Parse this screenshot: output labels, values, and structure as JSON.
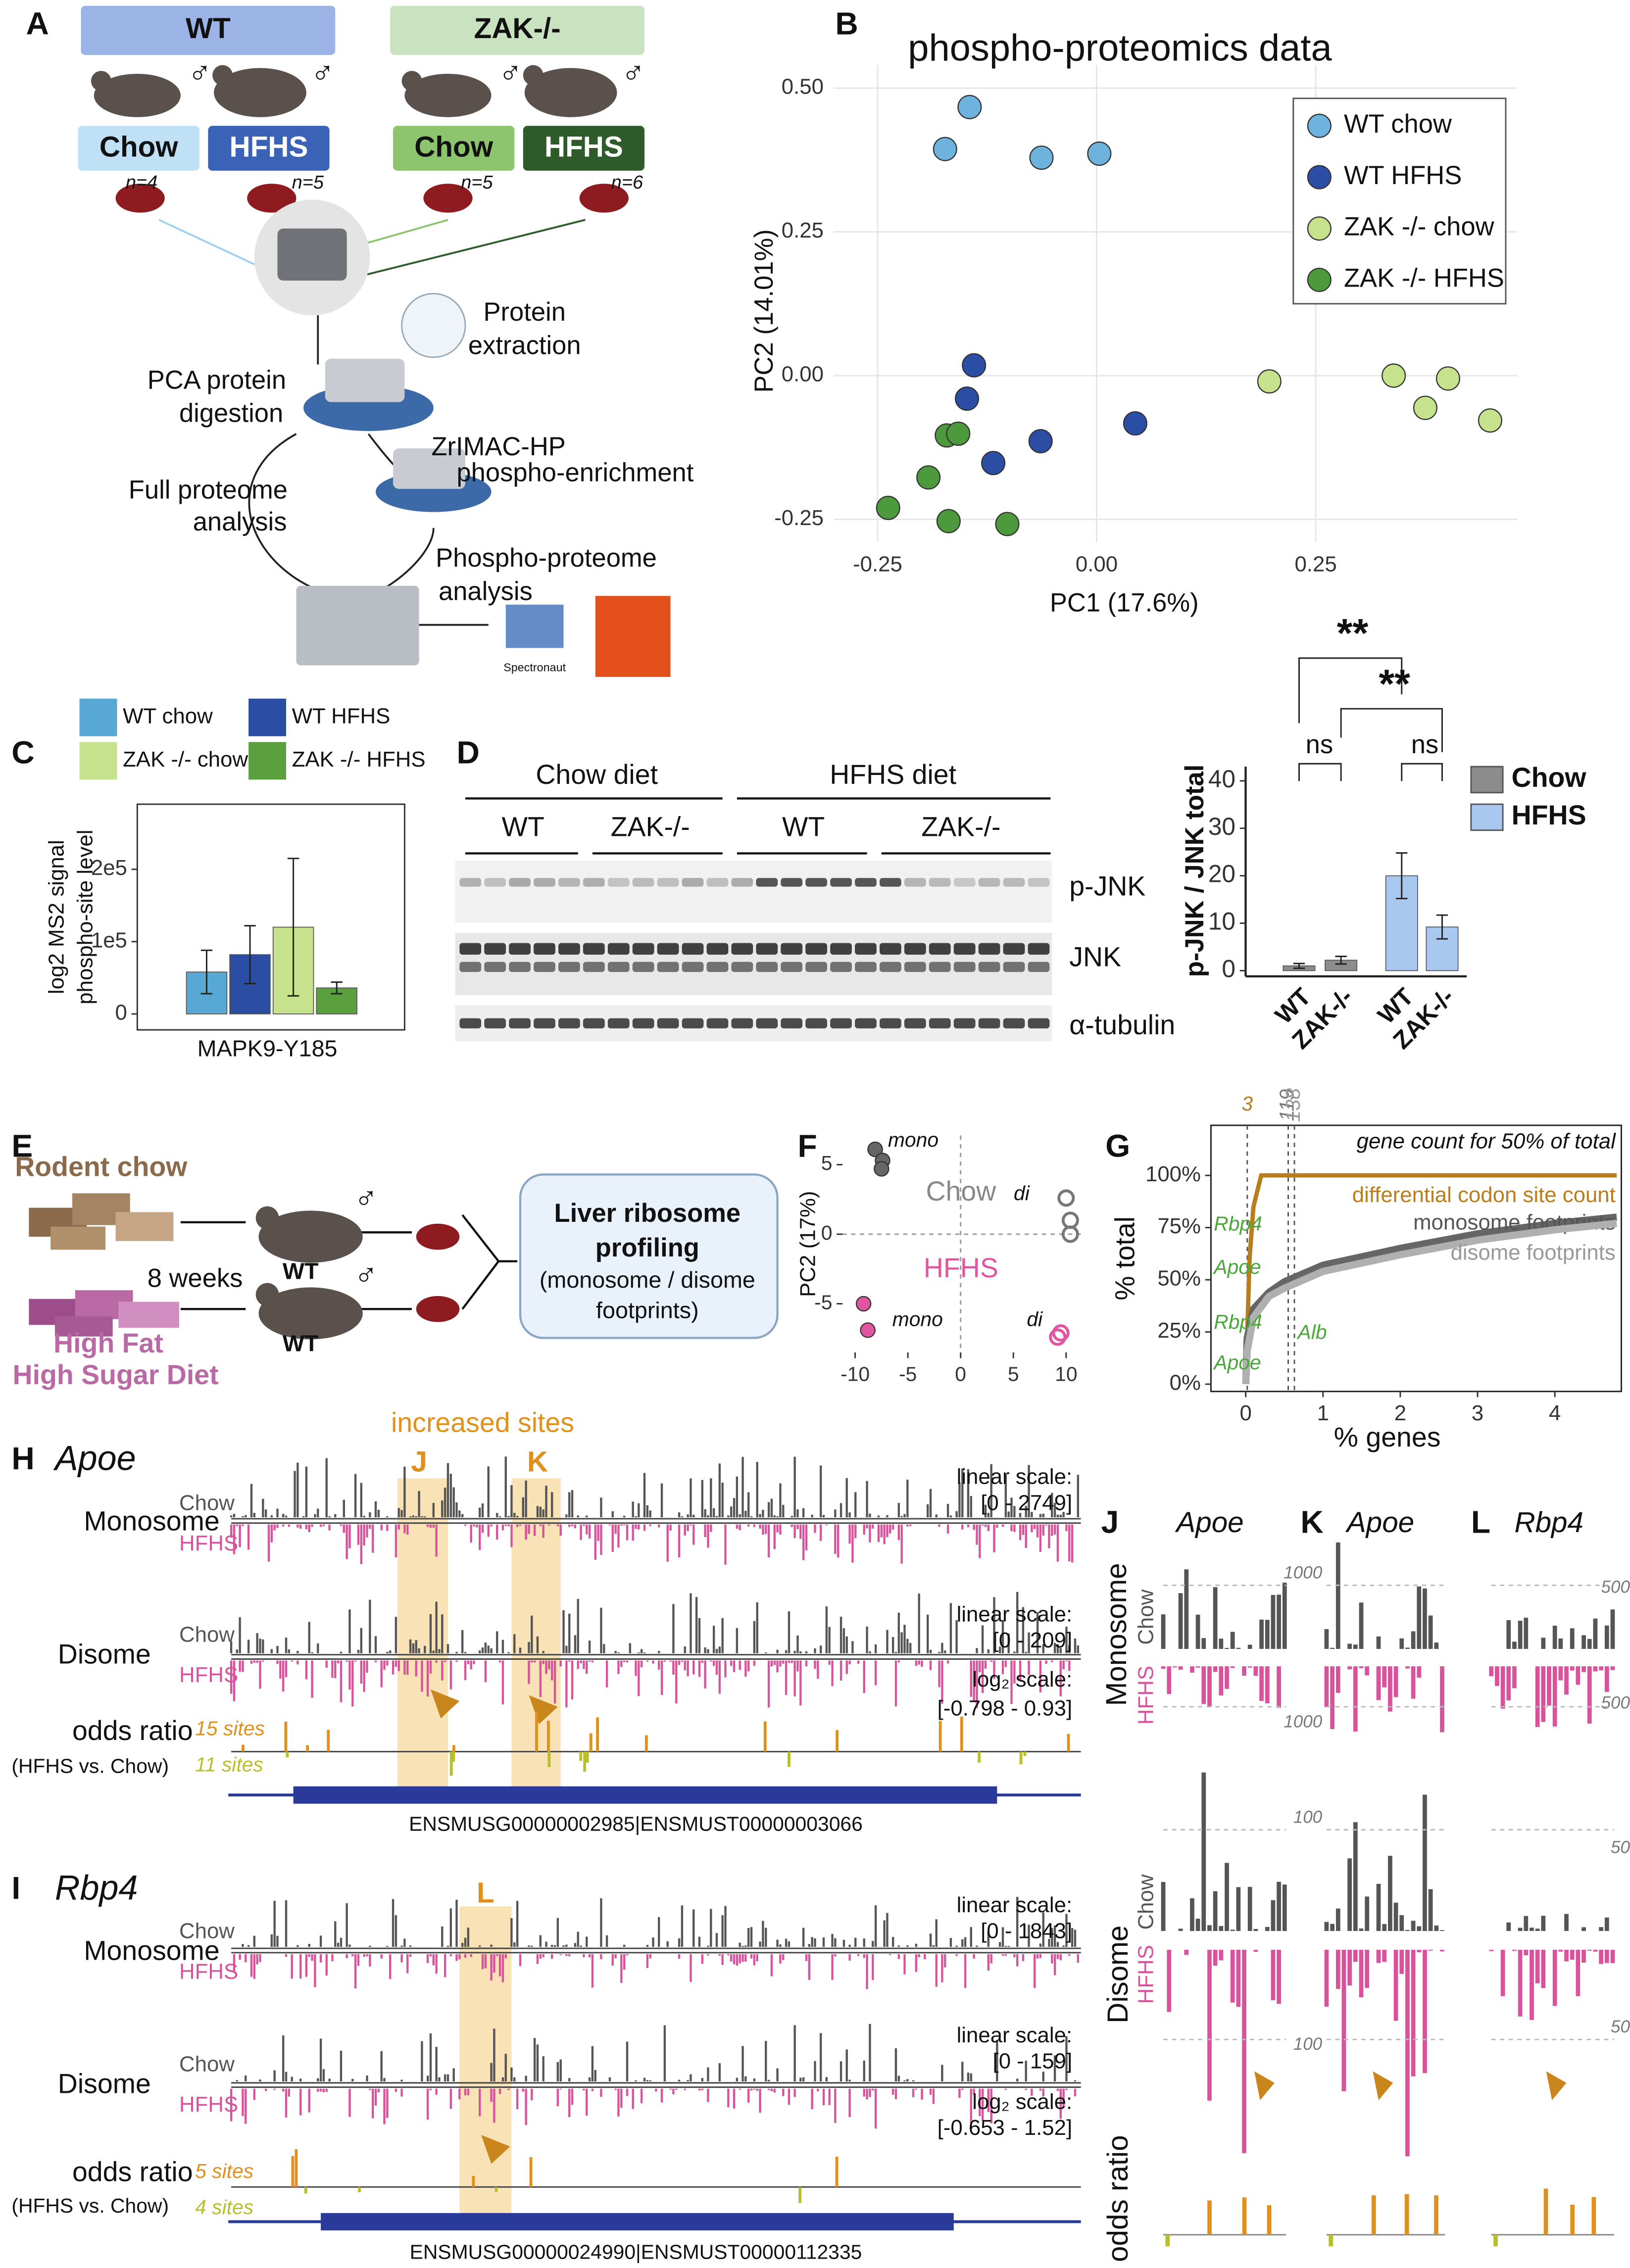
{
  "panel_letters": [
    "A",
    "B",
    "C",
    "D",
    "E",
    "F",
    "G",
    "H",
    "I",
    "J",
    "K",
    "L"
  ],
  "panel_A": {
    "groups": [
      "WT",
      "ZAK-/-"
    ],
    "diets": [
      "Chow",
      "HFHS",
      "Chow",
      "HFHS"
    ],
    "n": [
      "n=4",
      "n=5",
      "n=5",
      "n=6"
    ],
    "male": "♂",
    "steps": [
      "Protein",
      "extraction",
      "PCA protein",
      "digestion",
      "ZrIMAC-HP",
      "phospho-enrichment",
      "Full proteome",
      "analysis",
      "Phospho-proteome",
      "analysis",
      "Spectronaut"
    ]
  },
  "panel_D": {
    "diets": [
      "Chow diet",
      "HFHS diet"
    ],
    "genotypes": [
      "WT",
      "ZAK-/-",
      "WT",
      "ZAK-/-"
    ],
    "blots": [
      "p-JNK",
      "JNK",
      "α-tubulin"
    ]
  },
  "panel_E": {
    "texts": [
      "Rodent chow",
      "8 weeks",
      "High Fat",
      "High Sugar Diet",
      "WT",
      "WT",
      "Liver ribosome",
      "profiling",
      "(monosome / disome",
      "footprints)"
    ]
  },
  "panel_H": {
    "gene": "Apoe",
    "highlight": "increased sites",
    "sites": [
      "J",
      "K"
    ],
    "tracks": [
      "Monosome",
      "Chow",
      "HFHS",
      "Disome",
      "Chow",
      "HFHS",
      "odds ratio",
      "(HFHS vs. Chow)"
    ],
    "scales": [
      "linear scale:",
      "[0 - 2749]",
      "linear scale:",
      "[0 - 209]",
      "log₂ scale:",
      "[-0.798 - 0.93]"
    ],
    "site_counts": [
      "15 sites",
      "11 sites"
    ],
    "transcript": "ENSMUSG00000002985|ENSMUST00000003066"
  },
  "panel_I": {
    "gene": "Rbp4",
    "sites": [
      "L"
    ],
    "tracks": [
      "Monosome",
      "Chow",
      "HFHS",
      "Disome",
      "Chow",
      "HFHS",
      "odds ratio",
      "(HFHS vs. Chow)"
    ],
    "scales": [
      "linear scale:",
      "[0 - 1843]",
      "linear scale:",
      "[0 - 159]",
      "log₂ scale:",
      "[-0.653 - 1.52]"
    ],
    "site_counts": [
      "5 sites",
      "4 sites"
    ],
    "transcript": "ENSMUSG00000024990|ENSMUST00000112335"
  },
  "panel_JKL": {
    "genes": [
      "Apoe",
      "Apoe",
      "Rbp4"
    ],
    "tracks": [
      "Monosome",
      "Chow",
      "HFHS",
      "Disome",
      "Chow",
      "HFHS",
      "odds ratio"
    ],
    "scales": [
      "1000",
      "1000",
      "500",
      "500",
      "100",
      "50",
      "100",
      "50"
    ]
  },
  "chart_data": [
    {
      "type": "scatter",
      "title": "phospho-proteomics data",
      "xlabel": "PC1 (17.6%)",
      "ylabel": "PC2 (14.01%)",
      "xlim": [
        -0.3,
        0.48
      ],
      "ylim": [
        -0.29,
        0.54
      ],
      "xticks": [
        -0.25,
        {
          "value": 0,
          "label": "0.00"
        },
        0.25
      ],
      "yticks": [
        -0.25,
        {
          "value": 0,
          "label": "0.00"
        },
        0.25,
        {
          "value": 0.5,
          "label": "0.50"
        }
      ],
      "grid": true,
      "legend": "upper right",
      "series": [
        {
          "name": "WT chow",
          "color": "#6db3de",
          "x": [
            -0.145,
            -0.173,
            -0.063,
            0.003
          ],
          "values": [
            0.467,
            0.394,
            0.379,
            0.386
          ]
        },
        {
          "name": "WT HFHS",
          "color": "#2b4da3",
          "x": [
            -0.14,
            -0.148,
            -0.118,
            -0.064,
            0.044
          ],
          "values": [
            0.018,
            -0.04,
            -0.152,
            -0.114,
            -0.083
          ]
        },
        {
          "name": "ZAK -/- chow",
          "color": "#c6e28c",
          "x": [
            0.197,
            0.339,
            0.401,
            0.375,
            0.449
          ],
          "values": [
            -0.01,
            0.0,
            -0.005,
            -0.056,
            -0.078
          ]
        },
        {
          "name": "ZAK -/- HFHS",
          "color": "#4c9a3c",
          "x": [
            -0.238,
            -0.192,
            -0.171,
            -0.158,
            -0.169,
            -0.102
          ],
          "values": [
            -0.23,
            -0.177,
            -0.104,
            -0.101,
            -0.253,
            -0.258
          ]
        }
      ]
    },
    {
      "type": "bar",
      "xlabel": "MAPK9-Y185",
      "ylabel": [
        "log2 MS2 signal",
        "phospho-site level"
      ],
      "categories": [
        "MAPK9-Y185"
      ],
      "ylim": [
        -22000,
        290000
      ],
      "yticks": [
        0,
        {
          "value": 100000,
          "label": "1e5"
        },
        {
          "value": 200000,
          "label": "2e5"
        }
      ],
      "legend": "top",
      "series": [
        {
          "name": "WT chow",
          "color": "#58a8d6",
          "values": [
            58000
          ],
          "errors": [
            30000
          ]
        },
        {
          "name": "WT HFHS",
          "color": "#2b4da3",
          "values": [
            82000
          ],
          "errors": [
            40000
          ]
        },
        {
          "name": "ZAK -/- chow",
          "color": "#c6e28c",
          "values": [
            120000
          ],
          "errors": [
            95000
          ]
        },
        {
          "name": "ZAK -/- HFHS",
          "color": "#5aa03e",
          "values": [
            36000
          ],
          "errors": [
            8000
          ]
        }
      ]
    },
    {
      "type": "bar",
      "ylabel": "p-JNK / JNK total",
      "categories": [
        "WT",
        "ZAK-/-",
        "WT",
        "ZAK-/-"
      ],
      "ylim": [
        -1.2,
        43
      ],
      "yticks": [
        0,
        10,
        20,
        30,
        40
      ],
      "legend": "right",
      "annotations": [
        "ns",
        "ns",
        "**",
        "**"
      ],
      "series": [
        {
          "name": "Chow",
          "color": "#8c8c8c",
          "values": [
            1,
            2.2,
            null,
            null
          ],
          "errors": [
            0.5,
            0.8,
            null,
            null
          ]
        },
        {
          "name": "HFHS",
          "color": "#a9c8f0",
          "values": [
            null,
            null,
            20,
            9.2
          ],
          "errors": [
            null,
            null,
            4.8,
            2.5
          ]
        }
      ]
    },
    {
      "type": "scatter",
      "ylabel": "PC2 (17%)",
      "xlim": [
        -11.2,
        11.4
      ],
      "ylim": [
        -8.5,
        7.1
      ],
      "xticks": [
        -10,
        -5,
        0,
        5,
        10
      ],
      "yticks": [
        -5,
        0,
        5
      ],
      "grid": false,
      "annotations": [
        "mono",
        "di",
        "Chow",
        "HFHS",
        "mono",
        "di"
      ],
      "series": [
        {
          "color": "#666666",
          "x": [
            -8.1,
            -7.4,
            -7.5
          ],
          "values": [
            6.1,
            5.3,
            4.7
          ]
        },
        {
          "color": "#777777",
          "marker": "open",
          "x": [
            10,
            10.4,
            10.4
          ],
          "values": [
            2.6,
            1.0,
            0.0
          ]
        },
        {
          "color": "#e0559f",
          "x": [
            -9.2,
            -8.8
          ],
          "values": [
            -5.0,
            -6.9
          ]
        },
        {
          "color": "#e0559f",
          "marker": "open",
          "x": [
            9.2,
            9.5
          ],
          "values": [
            -7.4,
            -7.1
          ]
        }
      ]
    },
    {
      "type": "line",
      "xlabel": "% genes",
      "ylabel": "% total",
      "xlim": [
        -0.45,
        4.86
      ],
      "ylim": [
        -3.5,
        124
      ],
      "xticks": [
        0,
        1,
        2,
        3,
        4
      ],
      "yticks": [
        {
          "value": 0,
          "label": "0%"
        },
        {
          "value": 25,
          "label": "25%"
        },
        {
          "value": 50,
          "label": "50%"
        },
        {
          "value": 75,
          "label": "75%"
        },
        {
          "value": 100,
          "label": "100%"
        }
      ],
      "vlines": [
        {
          "value": 0.02,
          "label": "3"
        },
        {
          "value": 0.55,
          "label": "119"
        },
        {
          "value": 0.63,
          "label": "138"
        }
      ],
      "annotations": [
        "gene count for 50% of total",
        "Rbp4",
        "Apoe",
        "Rbp4",
        "Apoe",
        "Alb"
      ],
      "series": [
        {
          "name": "differential codon site count",
          "color": "#b87d1c",
          "x": [
            0,
            0.05,
            0.1,
            0.2,
            4.8
          ],
          "values": [
            0,
            60,
            85,
            100,
            100
          ]
        },
        {
          "name": "monosome footprints",
          "color": "#666666",
          "x": [
            0,
            0.02,
            0.1,
            0.3,
            0.5,
            1,
            2,
            3,
            4,
            4.8
          ],
          "values": [
            0,
            22,
            36,
            44,
            49,
            57,
            65,
            72,
            77,
            80
          ]
        },
        {
          "name": "disome footprints",
          "color": "#b0b0b0",
          "x": [
            0,
            0.02,
            0.1,
            0.3,
            0.5,
            1,
            2,
            3,
            4,
            4.8
          ],
          "values": [
            0,
            16,
            32,
            42,
            46,
            54,
            62,
            69,
            74,
            77
          ]
        }
      ]
    }
  ]
}
